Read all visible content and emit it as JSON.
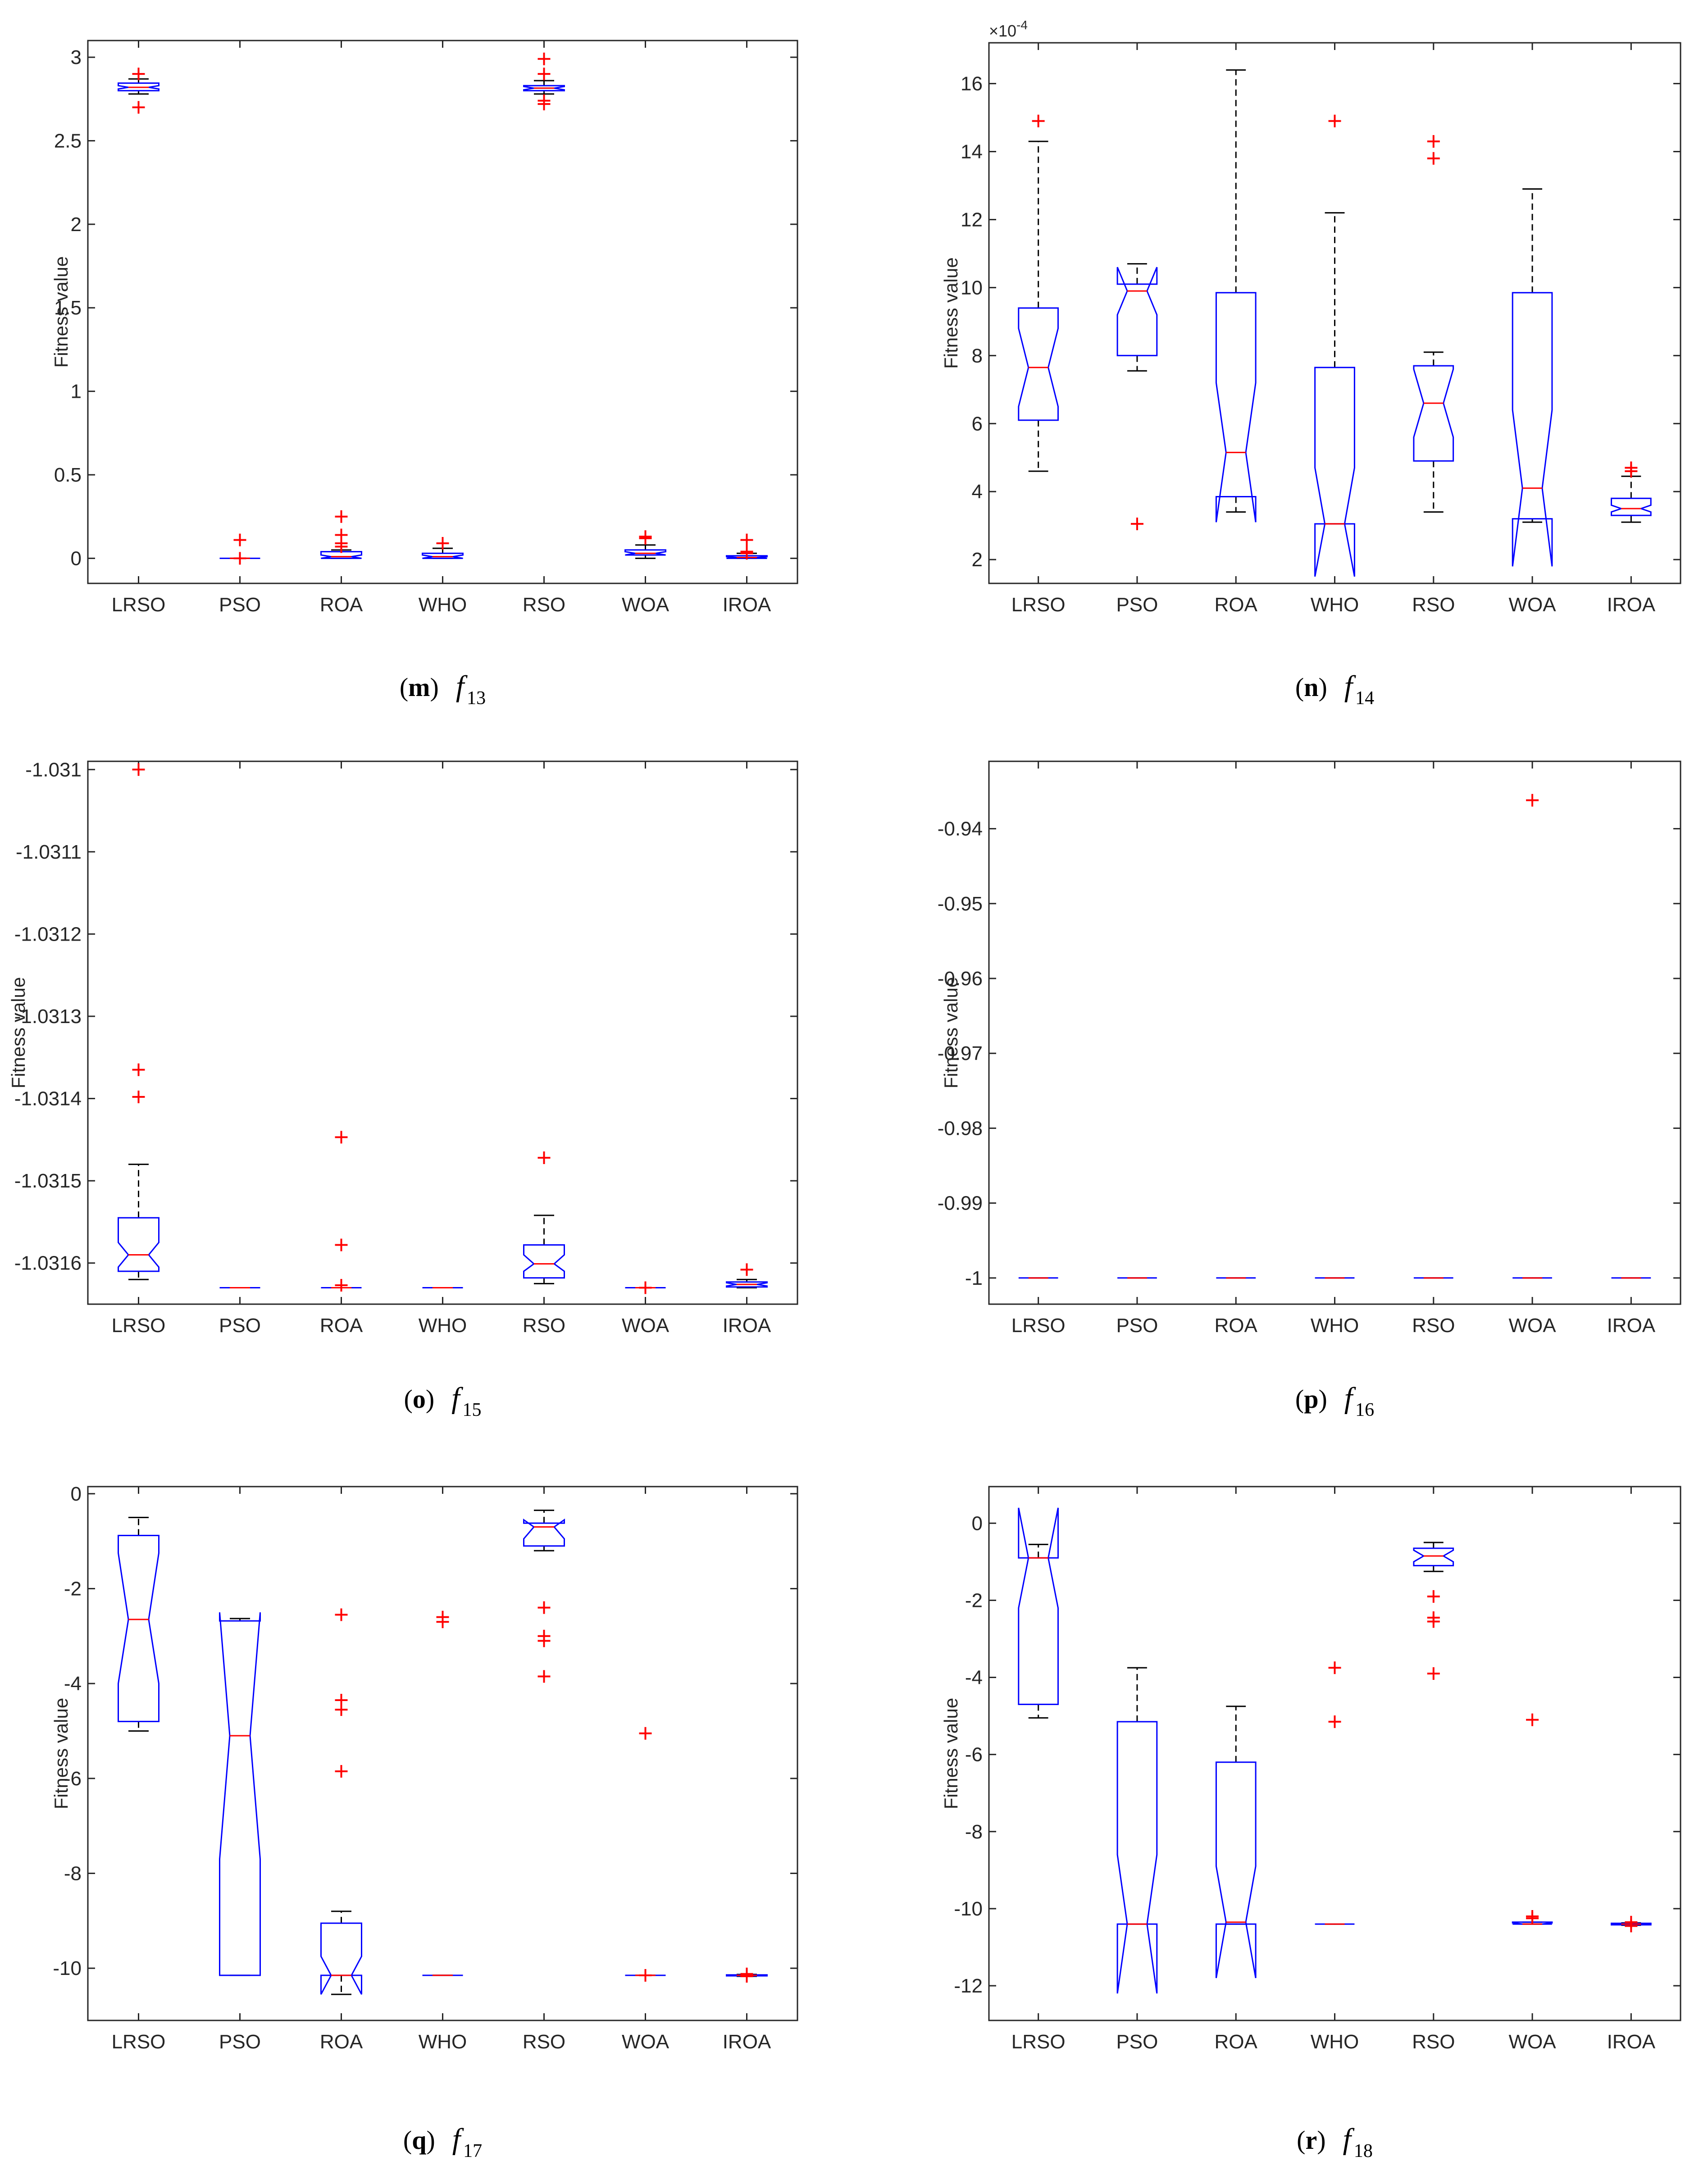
{
  "figure_caption_sublabels": [
    "m",
    "n",
    "o",
    "p",
    "q",
    "r"
  ],
  "chart_data": [
    {
      "type": "boxplot",
      "panel_label": "m",
      "function_name": "f",
      "function_index": "13",
      "ylabel": "Fitness value",
      "categories": [
        "LRSO",
        "PSO",
        "ROA",
        "WHO",
        "RSO",
        "WOA",
        "IROA"
      ],
      "ylim": [
        -0.15,
        3.1
      ],
      "yticks": [
        0,
        0.5,
        1,
        1.5,
        2,
        2.5,
        3
      ],
      "ytick_labels": [
        "0",
        "0.5",
        "1",
        "1.5",
        "2",
        "2.5",
        "3"
      ],
      "exponent_label": "",
      "boxes": [
        {
          "q1": 2.8,
          "med": 2.82,
          "q3": 2.845,
          "wlo": 2.78,
          "whi": 2.87,
          "nlo": 2.81,
          "nhi": 2.83,
          "outliers": [
            2.7,
            2.9
          ]
        },
        {
          "q1": 0.0,
          "med": 0.0,
          "q3": 0.0,
          "wlo": 0.0,
          "whi": 0.0,
          "nlo": 0.0,
          "nhi": 0.0,
          "outliers": [
            0.0,
            0.11
          ]
        },
        {
          "q1": 0.0,
          "med": 0.01,
          "q3": 0.04,
          "wlo": 0.0,
          "whi": 0.05,
          "nlo": 0.0,
          "nhi": 0.02,
          "outliers": [
            0.07,
            0.09,
            0.14,
            0.25
          ]
        },
        {
          "q1": 0.0,
          "med": 0.01,
          "q3": 0.03,
          "wlo": 0.0,
          "whi": 0.06,
          "nlo": 0.0,
          "nhi": 0.02,
          "outliers": [
            0.09
          ]
        },
        {
          "q1": 2.8,
          "med": 2.815,
          "q3": 2.83,
          "wlo": 2.78,
          "whi": 2.86,
          "nlo": 2.805,
          "nhi": 2.825,
          "outliers": [
            2.72,
            2.74,
            2.9,
            2.99
          ]
        },
        {
          "q1": 0.02,
          "med": 0.03,
          "q3": 0.05,
          "wlo": 0.0,
          "whi": 0.08,
          "nlo": 0.02,
          "nhi": 0.04,
          "outliers": [
            0.12,
            0.13
          ]
        },
        {
          "q1": 0.0,
          "med": 0.005,
          "q3": 0.015,
          "wlo": 0.0,
          "whi": 0.03,
          "nlo": 0.0,
          "nhi": 0.01,
          "outliers": [
            0.03,
            0.04,
            0.11
          ]
        }
      ]
    },
    {
      "type": "boxplot",
      "panel_label": "n",
      "function_name": "f",
      "function_index": "14",
      "ylabel": "Fitness value",
      "categories": [
        "LRSO",
        "PSO",
        "ROA",
        "WHO",
        "RSO",
        "WOA",
        "IROA"
      ],
      "ylim": [
        0.00013,
        0.00172
      ],
      "yticks": [
        0.0002,
        0.0004,
        0.0006,
        0.0008,
        0.001,
        0.0012,
        0.0014,
        0.0016
      ],
      "ytick_labels": [
        "2",
        "4",
        "6",
        "8",
        "10",
        "12",
        "14",
        "16"
      ],
      "exponent_label": "×10",
      "exponent_power": "-4",
      "boxes": [
        {
          "q1": 0.00061,
          "med": 0.000765,
          "q3": 0.00094,
          "wlo": 0.00046,
          "whi": 0.00143,
          "nlo": 0.00065,
          "nhi": 0.00088,
          "outliers": [
            0.00149
          ]
        },
        {
          "q1": 0.0008,
          "med": 0.00099,
          "q3": 0.00101,
          "wlo": 0.000755,
          "whi": 0.00107,
          "nlo": 0.00092,
          "nhi": 0.00106,
          "outliers": [
            0.000305
          ]
        },
        {
          "q1": 0.000385,
          "med": 0.000515,
          "q3": 0.000985,
          "wlo": 0.00034,
          "whi": 0.00164,
          "nlo": 0.00031,
          "nhi": 0.00072,
          "outliers": []
        },
        {
          "q1": 0.000305,
          "med": 0.000305,
          "q3": 0.000765,
          "wlo": 0.000305,
          "whi": 0.00122,
          "nlo": 0.00015,
          "nhi": 0.00047,
          "outliers": [
            0.00149
          ]
        },
        {
          "q1": 0.00049,
          "med": 0.00066,
          "q3": 0.00077,
          "wlo": 0.00034,
          "whi": 0.00081,
          "nlo": 0.00056,
          "nhi": 0.00076,
          "outliers": [
            0.00138,
            0.00143
          ]
        },
        {
          "q1": 0.00032,
          "med": 0.00041,
          "q3": 0.000985,
          "wlo": 0.00031,
          "whi": 0.00129,
          "nlo": 0.00018,
          "nhi": 0.00064,
          "outliers": []
        },
        {
          "q1": 0.00033,
          "med": 0.00035,
          "q3": 0.00038,
          "wlo": 0.00031,
          "whi": 0.000445,
          "nlo": 0.00034,
          "nhi": 0.00036,
          "outliers": [
            0.00046,
            0.00047
          ]
        }
      ]
    },
    {
      "type": "boxplot",
      "panel_label": "o",
      "function_name": "f",
      "function_index": "15",
      "ylabel": "Fitness value",
      "categories": [
        "LRSO",
        "PSO",
        "ROA",
        "WHO",
        "RSO",
        "WOA",
        "IROA"
      ],
      "ylim": [
        -1.03165,
        -1.03099
      ],
      "yticks": [
        -1.031,
        -1.0311,
        -1.0312,
        -1.0313,
        -1.0314,
        -1.0315,
        -1.0316
      ],
      "ytick_labels": [
        "-1.031",
        "-1.0311",
        "-1.0312",
        "-1.0313",
        "-1.0314",
        "-1.0315",
        "-1.0316"
      ],
      "exponent_label": "",
      "boxes": [
        {
          "q1": -1.03161,
          "med": -1.03159,
          "q3": -1.031545,
          "wlo": -1.03162,
          "whi": -1.03148,
          "nlo": -1.031605,
          "nhi": -1.031575,
          "outliers": [
            -1.031,
            -1.031365,
            -1.031398
          ]
        },
        {
          "q1": -1.03163,
          "med": -1.03163,
          "q3": -1.03163,
          "wlo": -1.03163,
          "whi": -1.03163,
          "nlo": -1.03163,
          "nhi": -1.03163,
          "outliers": []
        },
        {
          "q1": -1.03163,
          "med": -1.03163,
          "q3": -1.03163,
          "wlo": -1.03163,
          "whi": -1.03163,
          "nlo": -1.03163,
          "nhi": -1.03163,
          "outliers": [
            -1.031447,
            -1.031578,
            -1.031627
          ]
        },
        {
          "q1": -1.03163,
          "med": -1.03163,
          "q3": -1.03163,
          "wlo": -1.03163,
          "whi": -1.03163,
          "nlo": -1.03163,
          "nhi": -1.03163,
          "outliers": []
        },
        {
          "q1": -1.031618,
          "med": -1.031601,
          "q3": -1.031578,
          "wlo": -1.031625,
          "whi": -1.031542,
          "nlo": -1.03161,
          "nhi": -1.03159,
          "outliers": [
            -1.031472
          ]
        },
        {
          "q1": -1.03163,
          "med": -1.03163,
          "q3": -1.03163,
          "wlo": -1.03163,
          "whi": -1.03163,
          "nlo": -1.03163,
          "nhi": -1.03163,
          "outliers": [
            -1.03163
          ]
        },
        {
          "q1": -1.031629,
          "med": -1.031626,
          "q3": -1.031623,
          "wlo": -1.03163,
          "whi": -1.03162,
          "nlo": -1.031628,
          "nhi": -1.031624,
          "outliers": [
            -1.031608
          ]
        }
      ]
    },
    {
      "type": "boxplot",
      "panel_label": "p",
      "function_name": "f",
      "function_index": "16",
      "ylabel": "Fitness value",
      "categories": [
        "LRSO",
        "PSO",
        "ROA",
        "WHO",
        "RSO",
        "WOA",
        "IROA"
      ],
      "ylim": [
        -1.0035,
        -0.931
      ],
      "yticks": [
        -0.94,
        -0.95,
        -0.96,
        -0.97,
        -0.98,
        -0.99,
        -1
      ],
      "ytick_labels": [
        "-0.94",
        "-0.95",
        "-0.96",
        "-0.97",
        "-0.98",
        "-0.99",
        "-1"
      ],
      "exponent_label": "",
      "boxes": [
        {
          "q1": -1,
          "med": -1,
          "q3": -1,
          "wlo": -1,
          "whi": -1,
          "nlo": -1,
          "nhi": -1,
          "outliers": []
        },
        {
          "q1": -1,
          "med": -1,
          "q3": -1,
          "wlo": -1,
          "whi": -1,
          "nlo": -1,
          "nhi": -1,
          "outliers": []
        },
        {
          "q1": -1,
          "med": -1,
          "q3": -1,
          "wlo": -1,
          "whi": -1,
          "nlo": -1,
          "nhi": -1,
          "outliers": []
        },
        {
          "q1": -1,
          "med": -1,
          "q3": -1,
          "wlo": -1,
          "whi": -1,
          "nlo": -1,
          "nhi": -1,
          "outliers": []
        },
        {
          "q1": -1,
          "med": -1,
          "q3": -1,
          "wlo": -1,
          "whi": -1,
          "nlo": -1,
          "nhi": -1,
          "outliers": []
        },
        {
          "q1": -1,
          "med": -1,
          "q3": -1,
          "wlo": -1,
          "whi": -1,
          "nlo": -1,
          "nhi": -1,
          "outliers": [
            -0.9362
          ]
        },
        {
          "q1": -1,
          "med": -1,
          "q3": -1,
          "wlo": -1,
          "whi": -1,
          "nlo": -1,
          "nhi": -1,
          "outliers": []
        }
      ]
    },
    {
      "type": "boxplot",
      "panel_label": "q",
      "function_name": "f",
      "function_index": "17",
      "ylabel": "Fitness value",
      "categories": [
        "LRSO",
        "PSO",
        "ROA",
        "WHO",
        "RSO",
        "WOA",
        "IROA"
      ],
      "ylim": [
        -11.1,
        0.15
      ],
      "yticks": [
        0,
        -2,
        -4,
        -6,
        -8,
        -10
      ],
      "ytick_labels": [
        "0",
        "-2",
        "-4",
        "-6",
        "-8",
        "-10"
      ],
      "exponent_label": "",
      "boxes": [
        {
          "q1": -4.8,
          "med": -2.65,
          "q3": -0.88,
          "wlo": -5.0,
          "whi": -0.5,
          "nlo": -4.0,
          "nhi": -1.25,
          "outliers": []
        },
        {
          "q1": -10.15,
          "med": -5.1,
          "q3": -2.68,
          "wlo": -10.15,
          "whi": -2.63,
          "nlo": -7.7,
          "nhi": -2.5,
          "outliers": []
        },
        {
          "q1": -10.15,
          "med": -10.15,
          "q3": -9.05,
          "wlo": -10.55,
          "whi": -8.8,
          "nlo": -10.55,
          "nhi": -9.75,
          "outliers": [
            -2.55,
            -4.35,
            -4.55,
            -5.85
          ]
        },
        {
          "q1": -10.15,
          "med": -10.15,
          "q3": -10.15,
          "wlo": -10.15,
          "whi": -10.15,
          "nlo": -10.15,
          "nhi": -10.15,
          "outliers": [
            -2.6,
            -2.7
          ]
        },
        {
          "q1": -1.1,
          "med": -0.7,
          "q3": -0.62,
          "wlo": -1.2,
          "whi": -0.35,
          "nlo": -0.95,
          "nhi": -0.55,
          "outliers": [
            -2.4,
            -3.0,
            -3.1,
            -3.85
          ]
        },
        {
          "q1": -10.15,
          "med": -10.15,
          "q3": -10.15,
          "wlo": -10.15,
          "whi": -10.15,
          "nlo": -10.15,
          "nhi": -10.15,
          "outliers": [
            -5.05,
            -10.15
          ]
        },
        {
          "q1": -10.16,
          "med": -10.15,
          "q3": -10.14,
          "wlo": -10.17,
          "whi": -10.13,
          "nlo": -10.155,
          "nhi": -10.145,
          "outliers": [
            -10.12,
            -10.17
          ]
        }
      ]
    },
    {
      "type": "boxplot",
      "panel_label": "r",
      "function_name": "f",
      "function_index": "18",
      "ylabel": "Fitness value",
      "categories": [
        "LRSO",
        "PSO",
        "ROA",
        "WHO",
        "RSO",
        "WOA",
        "IROA"
      ],
      "ylim": [
        -12.9,
        0.95
      ],
      "yticks": [
        0,
        -2,
        -4,
        -6,
        -8,
        -10,
        -12
      ],
      "ytick_labels": [
        "0",
        "-2",
        "-4",
        "-6",
        "-8",
        "-10",
        "-12"
      ],
      "exponent_label": "",
      "boxes": [
        {
          "q1": -4.7,
          "med": -0.9,
          "q3": -0.9,
          "wlo": -5.05,
          "whi": -0.55,
          "nlo": -2.2,
          "nhi": 0.4,
          "outliers": []
        },
        {
          "q1": -10.4,
          "med": -10.4,
          "q3": -5.15,
          "wlo": -10.4,
          "whi": -3.75,
          "nlo": -12.2,
          "nhi": -8.6,
          "outliers": []
        },
        {
          "q1": -10.4,
          "med": -10.35,
          "q3": -6.2,
          "wlo": -10.4,
          "whi": -4.75,
          "nlo": -11.8,
          "nhi": -8.9,
          "outliers": []
        },
        {
          "q1": -10.4,
          "med": -10.4,
          "q3": -10.4,
          "wlo": -10.4,
          "whi": -10.4,
          "nlo": -10.4,
          "nhi": -10.4,
          "outliers": [
            -3.75,
            -5.15
          ]
        },
        {
          "q1": -1.1,
          "med": -0.85,
          "q3": -0.65,
          "wlo": -1.25,
          "whi": -0.5,
          "nlo": -1.0,
          "nhi": -0.7,
          "outliers": [
            -1.9,
            -2.45,
            -2.55,
            -3.9
          ]
        },
        {
          "q1": -10.4,
          "med": -10.4,
          "q3": -10.35,
          "wlo": -10.4,
          "whi": -10.35,
          "nlo": -10.4,
          "nhi": -10.37,
          "outliers": [
            -5.1,
            -10.2,
            -10.25
          ]
        },
        {
          "q1": -10.42,
          "med": -10.4,
          "q3": -10.38,
          "wlo": -10.43,
          "whi": -10.37,
          "nlo": -10.41,
          "nhi": -10.39,
          "outliers": [
            -10.35,
            -10.45
          ]
        }
      ]
    }
  ]
}
